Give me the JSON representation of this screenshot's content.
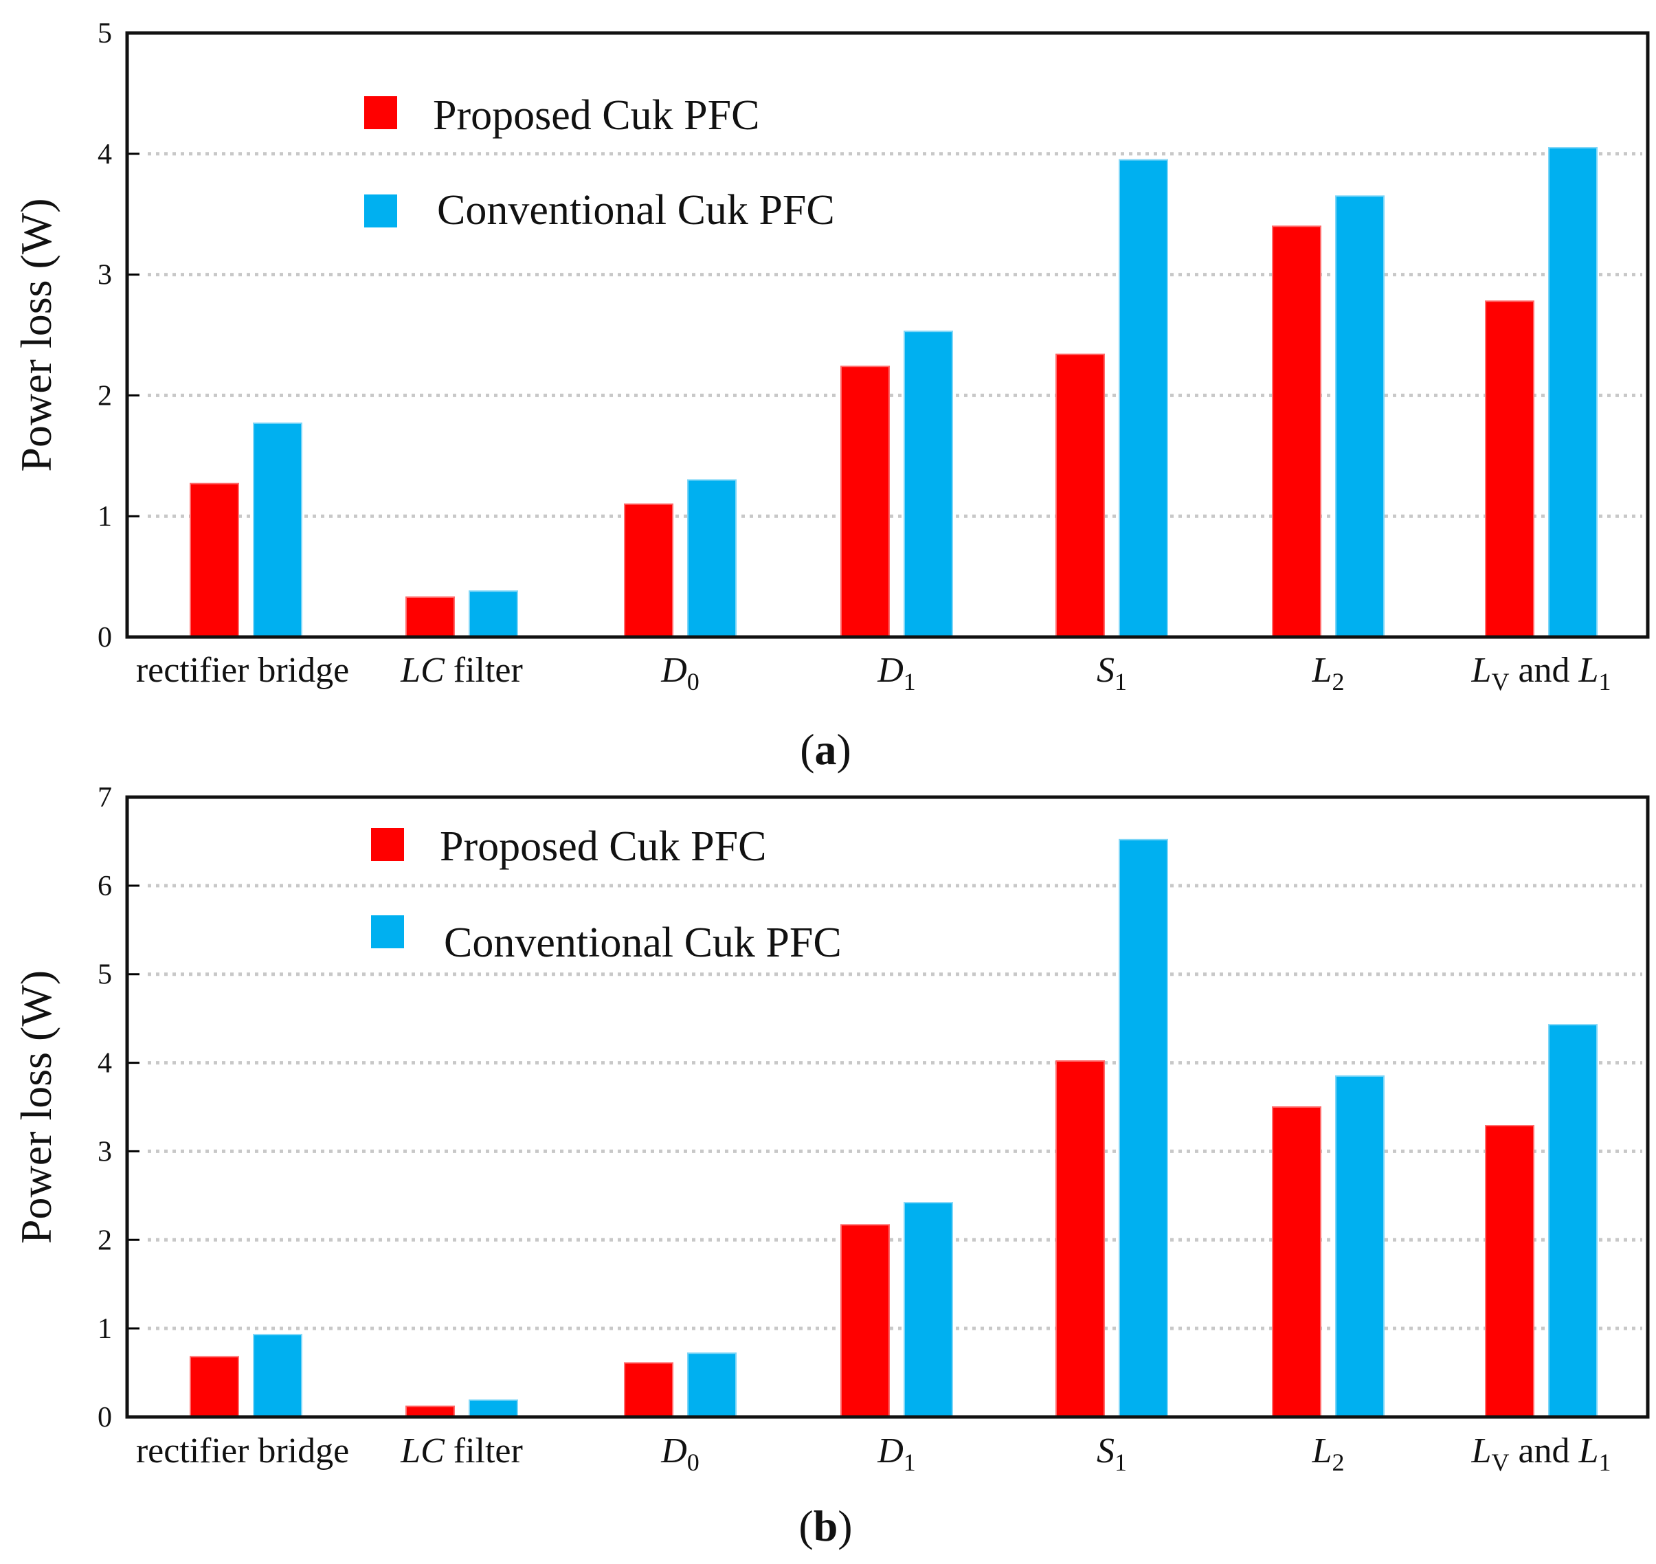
{
  "chart_data": [
    {
      "type": "bar",
      "panel_label": "a",
      "title": "",
      "xlabel": "",
      "ylabel": "Power loss (W)",
      "ylim": [
        0,
        5
      ],
      "yticks": [
        0,
        1,
        2,
        3,
        4,
        5
      ],
      "grid": true,
      "legend_position": "top-left",
      "categories": [
        {
          "main": "rectifier bridge"
        },
        {
          "main": "LC",
          "suffix": " filter",
          "italic_main": true
        },
        {
          "main": "D",
          "sub": "0",
          "italic_main": true
        },
        {
          "main": "D",
          "sub": "1",
          "italic_main": true
        },
        {
          "main": "S",
          "sub": "1",
          "italic_main": true
        },
        {
          "main": "L",
          "sub": "2",
          "italic_main": true
        },
        {
          "main": "L",
          "sub": "V",
          "middle": " and ",
          "main2": "L",
          "sub2": "1",
          "italic_main": true
        }
      ],
      "series": [
        {
          "name": "Proposed Cuk PFC",
          "color": "#ff0000",
          "values": [
            1.27,
            0.33,
            1.1,
            2.24,
            2.34,
            3.4,
            2.78
          ]
        },
        {
          "name": "Conventional Cuk PFC",
          "color": "#00b0f0",
          "values": [
            1.77,
            0.38,
            1.3,
            2.53,
            3.95,
            3.65,
            4.05
          ]
        }
      ]
    },
    {
      "type": "bar",
      "panel_label": "b",
      "title": "",
      "xlabel": "",
      "ylabel": "Power loss (W)",
      "ylim": [
        0,
        7
      ],
      "yticks": [
        0,
        1,
        2,
        3,
        4,
        5,
        6,
        7
      ],
      "grid": true,
      "legend_position": "top-left",
      "categories": [
        {
          "main": "rectifier bridge"
        },
        {
          "main": "LC",
          "suffix": " filter",
          "italic_main": true
        },
        {
          "main": "D",
          "sub": "0",
          "italic_main": true
        },
        {
          "main": "D",
          "sub": "1",
          "italic_main": true
        },
        {
          "main": "S",
          "sub": "1",
          "italic_main": true
        },
        {
          "main": "L",
          "sub": "2",
          "italic_main": true
        },
        {
          "main": "L",
          "sub": "V",
          "middle": " and ",
          "main2": "L",
          "sub2": "1",
          "italic_main": true
        }
      ],
      "series": [
        {
          "name": "Proposed Cuk PFC",
          "color": "#ff0000",
          "values": [
            0.68,
            0.12,
            0.61,
            2.17,
            4.02,
            3.5,
            3.29
          ]
        },
        {
          "name": "Conventional Cuk PFC",
          "color": "#00b0f0",
          "values": [
            0.93,
            0.19,
            0.72,
            2.42,
            6.52,
            3.85,
            4.43
          ]
        }
      ]
    }
  ]
}
